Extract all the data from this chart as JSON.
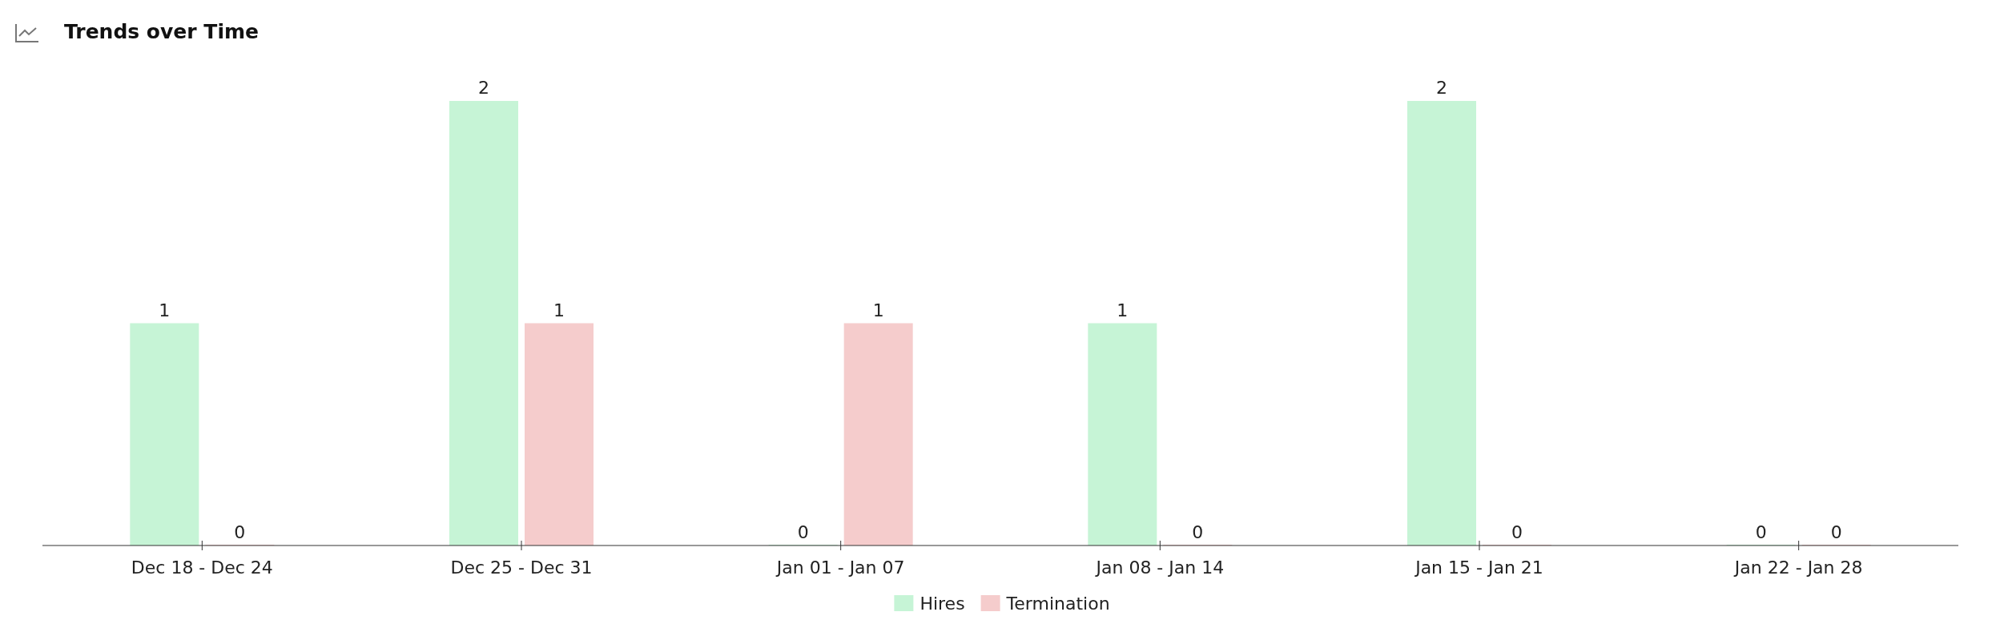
{
  "chart_data": {
    "type": "bar",
    "title": "Trends over Time",
    "categories": [
      "Dec 18 - Dec 24",
      "Dec 25 - Dec 31",
      "Jan 01 - Jan 07",
      "Jan 08 - Jan 14",
      "Jan 15 - Jan 21",
      "Jan 22 - Jan 28"
    ],
    "series": [
      {
        "name": "Hires",
        "color": "#c6f4d6",
        "values": [
          1,
          2,
          0,
          1,
          2,
          0
        ]
      },
      {
        "name": "Termination",
        "color": "#f5cccc",
        "values": [
          0,
          1,
          1,
          0,
          0,
          0
        ]
      }
    ],
    "data_labels": true,
    "legend": "bottom"
  }
}
